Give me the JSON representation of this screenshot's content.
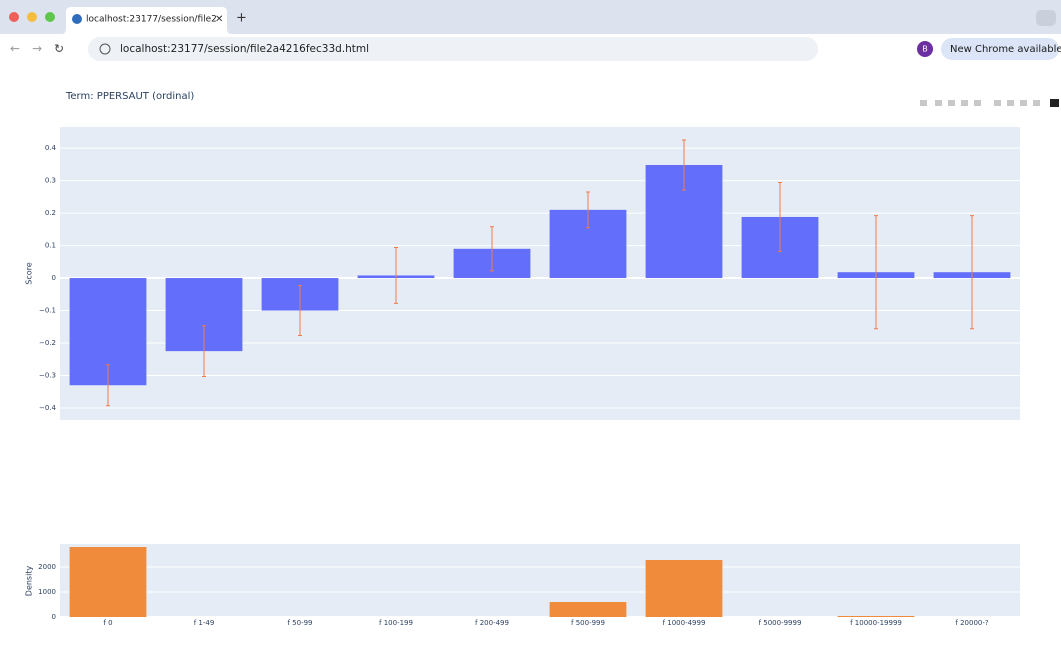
{
  "browser": {
    "tab_title": "localhost:23177/session/file2",
    "url": "localhost:23177/session/file2a4216fec33d.html",
    "profile": "B",
    "update_button": "New Chrome available"
  },
  "chart_data": [
    {
      "type": "bar",
      "title": "Term: PPERSAUT (ordinal)",
      "y_label": "Score",
      "values": [
        -0.33,
        -0.225,
        -0.1,
        0.008,
        0.09,
        0.21,
        0.348,
        0.188,
        0.018,
        0.018
      ],
      "errors": [
        0.063,
        0.078,
        0.077,
        0.086,
        0.068,
        0.055,
        0.077,
        0.106,
        0.174,
        0.174
      ],
      "color": "#636efa",
      "error_color": "#ef7c4b",
      "ylim": [
        -0.437,
        0.465
      ],
      "yticks": [
        {
          "value": -0.4,
          "label": "−0.4"
        },
        {
          "value": -0.3,
          "label": "−0.3"
        },
        {
          "value": -0.2,
          "label": "−0.2"
        },
        {
          "value": -0.1,
          "label": "−0.1"
        },
        0,
        0.1,
        0.2,
        0.3,
        0.4
      ],
      "grid": true
    },
    {
      "type": "bar",
      "y_label": "Density",
      "categories": [
        "f 0",
        "f 1-49",
        "f 50-99",
        "f 100-199",
        "f 200-499",
        "f 500-999",
        "f 1000-4999",
        "f 5000-9999",
        "f 10000-19999",
        "f 20000-?"
      ],
      "values": [
        2800,
        0,
        0,
        0,
        0,
        600,
        2280,
        0,
        40,
        0
      ],
      "color": "#ef8b3a",
      "ylim": [
        -40,
        2920
      ],
      "yticks": [
        0,
        1000,
        2000
      ],
      "grid": true
    }
  ]
}
